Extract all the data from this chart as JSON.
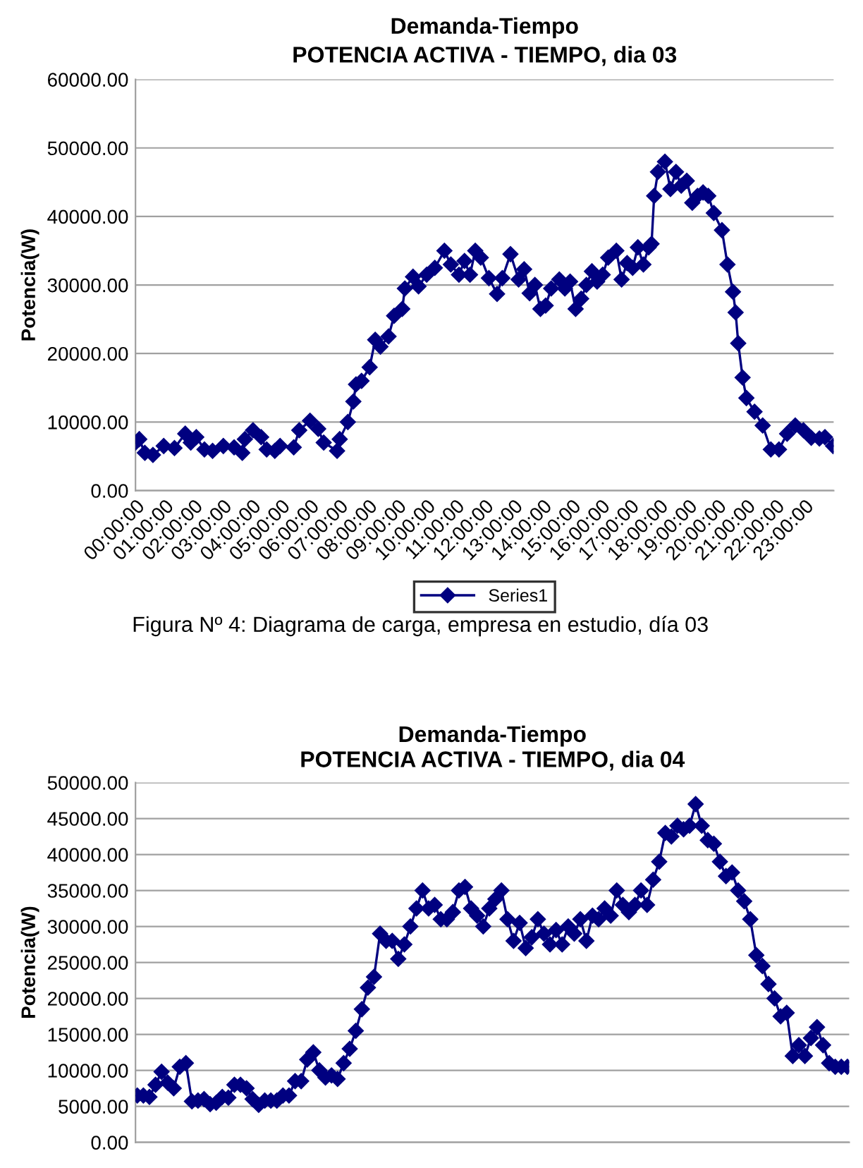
{
  "chart_data": [
    {
      "type": "line",
      "title": "Demanda-Tiempo",
      "subtitle": "POTENCIA ACTIVA - TIEMPO, dia 03",
      "ylabel": "Potencia(W)",
      "xlim": [
        0,
        24
      ],
      "xticks": [
        {
          "value": 0,
          "label": "00:00:00"
        },
        {
          "value": 1,
          "label": "01:00:00"
        },
        {
          "value": 2,
          "label": "02:00:00"
        },
        {
          "value": 3,
          "label": "03:00:00"
        },
        {
          "value": 4,
          "label": "04:00:00"
        },
        {
          "value": 5,
          "label": "05:00:00"
        },
        {
          "value": 6,
          "label": "06:00:00"
        },
        {
          "value": 7,
          "label": "07:00:00"
        },
        {
          "value": 8,
          "label": "08:00:00"
        },
        {
          "value": 9,
          "label": "09:00:00"
        },
        {
          "value": 10,
          "label": "10:00:00"
        },
        {
          "value": 11,
          "label": "11:00:00"
        },
        {
          "value": 12,
          "label": "12:00:00"
        },
        {
          "value": 13,
          "label": "13:00:00"
        },
        {
          "value": 14,
          "label": "14:00:00"
        },
        {
          "value": 15,
          "label": "15:00:00"
        },
        {
          "value": 16,
          "label": "16:00:00"
        },
        {
          "value": 17,
          "label": "17:00:00"
        },
        {
          "value": 18,
          "label": "18:00:00"
        },
        {
          "value": 19,
          "label": "19:00:00"
        },
        {
          "value": 20,
          "label": "20:00:00"
        },
        {
          "value": 21,
          "label": "21:00:00"
        },
        {
          "value": 22,
          "label": "22:00:00"
        },
        {
          "value": 23,
          "label": "23:00:00"
        }
      ],
      "ylim": [
        0,
        60000
      ],
      "yticks": [
        {
          "value": 0,
          "label": "0.00"
        },
        {
          "value": 10000,
          "label": "10000.00"
        },
        {
          "value": 20000,
          "label": "20000.00"
        },
        {
          "value": 30000,
          "label": "30000.00"
        },
        {
          "value": 40000,
          "label": "40000.00"
        },
        {
          "value": 50000,
          "label": "50000.00"
        },
        {
          "value": 60000,
          "label": "60000.00"
        }
      ],
      "grid": "y",
      "legend": "bottom",
      "marker": "diamond",
      "line_style": "solid",
      "annotations": [
        "Figura Nº 4: Diagrama de carga, empresa en estudio, día 03"
      ],
      "series": [
        {
          "name": "Series1",
          "color": "#000080",
          "x": [
            0,
            0.13,
            0.32,
            0.6,
            0.97,
            1.34,
            1.71,
            1.9,
            2.09,
            2.37,
            2.65,
            3.02,
            3.39,
            3.67,
            3.76,
            4.04,
            4.32,
            4.51,
            4.79,
            4.97,
            5.44,
            5.63,
            6.0,
            6.28,
            6.47,
            6.93,
            7.02,
            7.3,
            7.49,
            7.58,
            7.77,
            8.05,
            8.24,
            8.42,
            8.7,
            8.89,
            9.17,
            9.26,
            9.54,
            9.73,
            10.01,
            10.29,
            10.62,
            10.84,
            11.12,
            11.31,
            11.5,
            11.68,
            11.87,
            12.15,
            12.43,
            12.61,
            12.89,
            13.17,
            13.36,
            13.55,
            13.73,
            13.92,
            14.1,
            14.29,
            14.57,
            14.76,
            14.94,
            15.13,
            15.32,
            15.5,
            15.69,
            15.87,
            16.06,
            16.25,
            16.53,
            16.71,
            16.9,
            17.09,
            17.27,
            17.46,
            17.64,
            17.74,
            17.83,
            17.96,
            18.2,
            18.39,
            18.58,
            18.76,
            18.95,
            19.14,
            19.32,
            19.51,
            19.69,
            19.88,
            20.16,
            20.35,
            20.54,
            20.63,
            20.72,
            20.87,
            21.0,
            21.28,
            21.56,
            21.84,
            22.12,
            22.4,
            22.68,
            22.96,
            23.23,
            23.51,
            23.7,
            23.98
          ],
          "values": [
            7000,
            7500,
            5500,
            5200,
            6500,
            6200,
            8300,
            7000,
            7800,
            6000,
            5800,
            6500,
            6300,
            5500,
            7500,
            8800,
            7800,
            6000,
            5800,
            6500,
            6300,
            8800,
            10200,
            9000,
            7000,
            5800,
            7500,
            10000,
            13000,
            15500,
            16000,
            18000,
            22000,
            21000,
            22500,
            25500,
            26500,
            29500,
            31200,
            29800,
            31500,
            32500,
            35000,
            33000,
            31500,
            33500,
            31500,
            35000,
            34000,
            31000,
            28700,
            31000,
            34500,
            30800,
            32300,
            28800,
            30000,
            26500,
            27000,
            29500,
            30800,
            29500,
            30500,
            26500,
            28000,
            30000,
            32000,
            30500,
            31500,
            34000,
            35000,
            30800,
            33200,
            32500,
            35500,
            33000,
            35500,
            36000,
            43000,
            46500,
            48000,
            44000,
            46500,
            44500,
            45200,
            42000,
            43000,
            43500,
            43000,
            40500,
            38000,
            33000,
            29000,
            26000,
            21500,
            16500,
            13500,
            11500,
            9500,
            6000,
            6000,
            8300,
            9500,
            8800,
            7700,
            7600,
            7800,
            6500
          ]
        }
      ]
    },
    {
      "type": "line",
      "title": "Demanda-Tiempo",
      "subtitle": "POTENCIA ACTIVA - TIEMPO, dia 04",
      "ylabel": "Potencia(W)",
      "categories": [
        null,
        null,
        null,
        null,
        null,
        null,
        null,
        null,
        null,
        null,
        null,
        null,
        null,
        null,
        null,
        null,
        null,
        null,
        null,
        null,
        null,
        null,
        null,
        null,
        null,
        null,
        null,
        null,
        null,
        null,
        null,
        null,
        null,
        null,
        null,
        null,
        null,
        null,
        null,
        null,
        null,
        null,
        null,
        null,
        null,
        null,
        null,
        null,
        null,
        null,
        null,
        null,
        null,
        null,
        null,
        null,
        null,
        null,
        null,
        null,
        null,
        null,
        null,
        null,
        null,
        null,
        null,
        null,
        null,
        null,
        null,
        null,
        null,
        null,
        null,
        null,
        null,
        null,
        null,
        null,
        null,
        null,
        null,
        null,
        null,
        null,
        null,
        null,
        null,
        null,
        null,
        null,
        null,
        null,
        null,
        null,
        null,
        null,
        null,
        null,
        null,
        null,
        null,
        null,
        null,
        null,
        null,
        null,
        null,
        null,
        null,
        null,
        null,
        null,
        null,
        null,
        null,
        null
      ],
      "ylim": [
        0,
        50000
      ],
      "yticks": [
        {
          "value": 0,
          "label": "0.00"
        },
        {
          "value": 5000,
          "label": "5000.00"
        },
        {
          "value": 10000,
          "label": "10000.00"
        },
        {
          "value": 15000,
          "label": "15000.00"
        },
        {
          "value": 20000,
          "label": "20000.00"
        },
        {
          "value": 25000,
          "label": "25000.00"
        },
        {
          "value": 30000,
          "label": "30000.00"
        },
        {
          "value": 35000,
          "label": "35000.00"
        },
        {
          "value": 40000,
          "label": "40000.00"
        },
        {
          "value": 45000,
          "label": "45000.00"
        },
        {
          "value": 50000,
          "label": "50000.00"
        }
      ],
      "grid": "y",
      "marker": "diamond",
      "line_style": "solid",
      "series": [
        {
          "color": "#000080",
          "values": [
            6500,
            6500,
            6300,
            8000,
            9800,
            8300,
            7500,
            10500,
            11000,
            5700,
            5800,
            6000,
            5300,
            5500,
            6300,
            6200,
            8000,
            8000,
            7500,
            6000,
            5200,
            5800,
            5800,
            5800,
            6500,
            6500,
            8500,
            8500,
            11500,
            12500,
            10000,
            9000,
            9300,
            8800,
            11000,
            13000,
            15500,
            18500,
            21500,
            23000,
            29000,
            28000,
            28000,
            25500,
            27500,
            30000,
            32500,
            35000,
            32500,
            33000,
            31000,
            31000,
            32000,
            35000,
            35500,
            32500,
            31500,
            30000,
            32500,
            33800,
            35000,
            31000,
            28000,
            30500,
            27000,
            28500,
            31000,
            29000,
            27500,
            29500,
            27500,
            30000,
            29000,
            31000,
            28000,
            31500,
            31000,
            32500,
            31500,
            35000,
            33000,
            32000,
            33000,
            35000,
            33000,
            36500,
            39000,
            43000,
            42500,
            44000,
            43500,
            44000,
            47000,
            44000,
            42000,
            41500,
            39000,
            37000,
            37500,
            35000,
            33500,
            31000,
            26000,
            24500,
            22000,
            20000,
            17500,
            18000,
            12000,
            13500,
            12000,
            14500,
            16000,
            13500,
            11000,
            10500,
            10500,
            10500
          ]
        }
      ]
    }
  ]
}
